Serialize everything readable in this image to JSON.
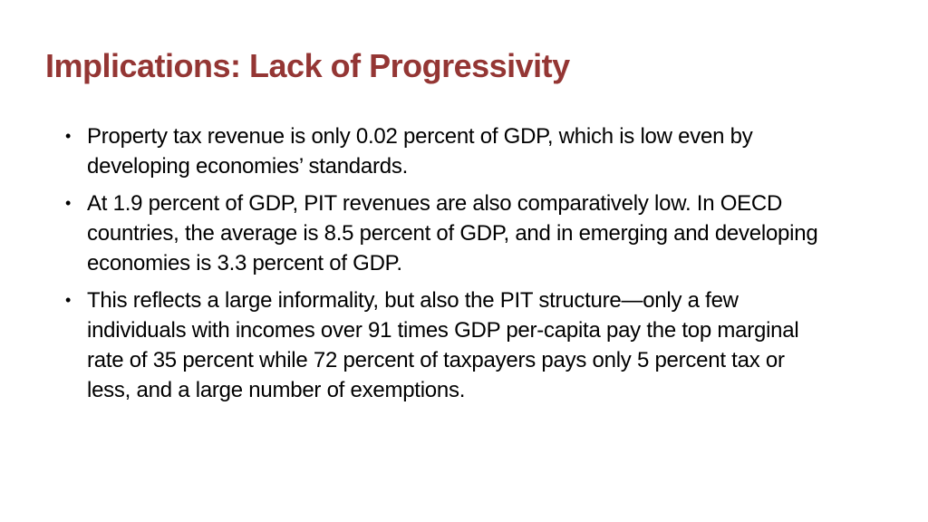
{
  "slide": {
    "title": "Implications: Lack of Progressivity",
    "bullet_symbol": "•",
    "bullets": [
      "Property tax revenue is only 0.02 percent of GDP, which is low even by developing economies’ standards.",
      "At 1.9 percent of GDP, PIT revenues are also comparatively low. In OECD countries, the average is 8.5 percent of GDP, and in emerging and developing economies is 3.3 percent of GDP.",
      "This reflects a large informality, but also the PIT structure—only a few individuals with incomes over 91 times GDP per-capita pay the top marginal rate of 35 percent while 72 percent of taxpayers pays only 5 percent tax or less, and a large number of exemptions."
    ],
    "colors": {
      "title": "#943634",
      "text": "#000000",
      "background": "#ffffff"
    }
  }
}
